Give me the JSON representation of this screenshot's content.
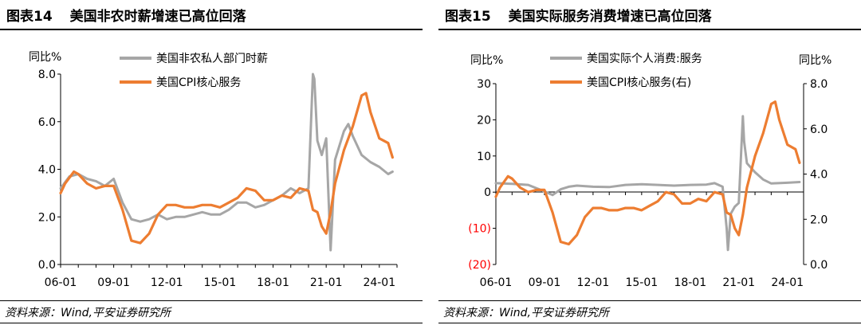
{
  "panels": [
    {
      "title_num": "图表14",
      "title_text": "美国非农时薪增速已高位回落",
      "source": "资料来源：Wind,平安证券研究所"
    },
    {
      "title_num": "图表15",
      "title_text": "美国实际服务消费增速已高位回落",
      "source": "资料来源：Wind,平安证券研究所"
    }
  ],
  "colors": {
    "gray": "#a6a6a6",
    "orange": "#ed7d31",
    "axis": "#000000",
    "negative": "#ff0000"
  },
  "chart_data": [
    {
      "type": "line",
      "ylabel": "同比%",
      "ylim": [
        0,
        8
      ],
      "yticks": [
        "0.0",
        "2.0",
        "4.0",
        "6.0",
        "8.0"
      ],
      "xticks": [
        "06-01",
        "09-01",
        "12-01",
        "15-01",
        "18-01",
        "21-01",
        "24-01"
      ],
      "xrange": [
        2006.0,
        2025.0
      ],
      "legend": "top",
      "series": [
        {
          "name": "美国非农私人部门时薪",
          "color": "gray",
          "x": [
            2006.0,
            2006.5,
            2007.0,
            2007.5,
            2008.0,
            2008.5,
            2009.0,
            2009.5,
            2010.0,
            2010.5,
            2011.0,
            2011.5,
            2012.0,
            2012.5,
            2013.0,
            2013.5,
            2014.0,
            2014.5,
            2015.0,
            2015.5,
            2016.0,
            2016.5,
            2017.0,
            2017.5,
            2018.0,
            2018.5,
            2019.0,
            2019.5,
            2020.0,
            2020.25,
            2020.33,
            2020.5,
            2020.75,
            2021.0,
            2021.25,
            2021.33,
            2021.5,
            2022.0,
            2022.25,
            2022.5,
            2023.0,
            2023.5,
            2024.0,
            2024.5,
            2024.75
          ],
          "values": [
            3.2,
            3.7,
            3.8,
            3.6,
            3.5,
            3.3,
            3.6,
            2.6,
            1.9,
            1.8,
            1.9,
            2.1,
            1.9,
            2.0,
            2.0,
            2.1,
            2.2,
            2.1,
            2.1,
            2.3,
            2.6,
            2.6,
            2.4,
            2.5,
            2.7,
            2.9,
            3.2,
            3.0,
            3.2,
            8.0,
            7.8,
            5.2,
            4.6,
            5.3,
            0.6,
            1.8,
            4.4,
            5.6,
            5.9,
            5.4,
            4.6,
            4.3,
            4.1,
            3.8,
            3.9
          ]
        },
        {
          "name": "美国CPI核心服务",
          "color": "orange",
          "x": [
            2006.0,
            2006.25,
            2006.75,
            2007.0,
            2007.5,
            2008.0,
            2008.5,
            2009.0,
            2009.5,
            2010.0,
            2010.5,
            2011.0,
            2011.5,
            2012.0,
            2012.5,
            2013.0,
            2013.5,
            2014.0,
            2014.5,
            2015.0,
            2015.5,
            2016.0,
            2016.5,
            2017.0,
            2017.5,
            2018.0,
            2018.5,
            2019.0,
            2019.5,
            2020.0,
            2020.25,
            2020.5,
            2020.75,
            2021.0,
            2021.25,
            2021.5,
            2022.0,
            2022.5,
            2023.0,
            2023.25,
            2023.5,
            2024.0,
            2024.5,
            2024.75
          ],
          "values": [
            3.0,
            3.4,
            3.9,
            3.8,
            3.4,
            3.2,
            3.3,
            3.3,
            2.3,
            1.0,
            0.9,
            1.3,
            2.1,
            2.5,
            2.5,
            2.4,
            2.4,
            2.5,
            2.5,
            2.4,
            2.6,
            2.8,
            3.2,
            3.1,
            2.7,
            2.7,
            2.9,
            2.8,
            3.2,
            3.1,
            2.3,
            2.2,
            1.6,
            1.3,
            2.2,
            3.4,
            4.8,
            5.8,
            7.1,
            7.2,
            6.4,
            5.3,
            5.1,
            4.5
          ]
        }
      ]
    },
    {
      "type": "line",
      "ylabel": "同比%",
      "ylabel_right": "同比%",
      "ylim": [
        -20,
        30
      ],
      "yticks": [
        "30",
        "20",
        "10",
        "0",
        "(10)",
        "(20)"
      ],
      "ylim_right": [
        0,
        8
      ],
      "yticks_right": [
        "8.0",
        "6.0",
        "4.0",
        "2.0",
        "0.0"
      ],
      "xticks": [
        "06-01",
        "09-01",
        "12-01",
        "15-01",
        "18-01",
        "21-01",
        "24-01"
      ],
      "xrange": [
        2006.0,
        2025.0
      ],
      "legend": "top",
      "series": [
        {
          "name": "美国实际个人消费:服务",
          "color": "gray",
          "axis": "left",
          "x": [
            2006.0,
            2007.0,
            2008.0,
            2009.0,
            2009.5,
            2010.0,
            2010.5,
            2011.0,
            2012.0,
            2013.0,
            2014.0,
            2015.0,
            2016.0,
            2017.0,
            2018.0,
            2019.0,
            2019.5,
            2020.0,
            2020.25,
            2020.33,
            2020.5,
            2020.75,
            2021.0,
            2021.25,
            2021.33,
            2021.5,
            2022.0,
            2022.5,
            2023.0,
            2024.0,
            2024.75
          ],
          "values": [
            2.5,
            2.3,
            2.0,
            0.2,
            -0.8,
            0.8,
            1.5,
            1.8,
            1.5,
            1.4,
            2.0,
            2.2,
            2.0,
            1.8,
            2.0,
            2.1,
            2.5,
            1.5,
            -10.0,
            -16.0,
            -6.0,
            -4.0,
            -3.0,
            21.0,
            14.0,
            8.0,
            5.5,
            3.5,
            2.4,
            2.6,
            2.8
          ]
        },
        {
          "name": "美国CPI核心服务(右)",
          "color": "orange",
          "axis": "right",
          "x": [
            2006.0,
            2006.25,
            2006.75,
            2007.0,
            2007.5,
            2008.0,
            2008.5,
            2009.0,
            2009.5,
            2010.0,
            2010.5,
            2011.0,
            2011.5,
            2012.0,
            2012.5,
            2013.0,
            2013.5,
            2014.0,
            2014.5,
            2015.0,
            2015.5,
            2016.0,
            2016.5,
            2017.0,
            2017.5,
            2018.0,
            2018.5,
            2019.0,
            2019.5,
            2020.0,
            2020.25,
            2020.5,
            2020.75,
            2021.0,
            2021.25,
            2021.5,
            2022.0,
            2022.5,
            2023.0,
            2023.25,
            2023.5,
            2024.0,
            2024.5,
            2024.75
          ],
          "values": [
            3.0,
            3.4,
            3.9,
            3.8,
            3.4,
            3.2,
            3.3,
            3.3,
            2.3,
            1.0,
            0.9,
            1.3,
            2.1,
            2.5,
            2.5,
            2.4,
            2.4,
            2.5,
            2.5,
            2.4,
            2.6,
            2.8,
            3.2,
            3.1,
            2.7,
            2.7,
            2.9,
            2.8,
            3.2,
            3.1,
            2.3,
            2.2,
            1.6,
            1.3,
            2.2,
            3.4,
            4.8,
            5.8,
            7.1,
            7.2,
            6.4,
            5.3,
            5.1,
            4.5
          ]
        }
      ]
    }
  ]
}
